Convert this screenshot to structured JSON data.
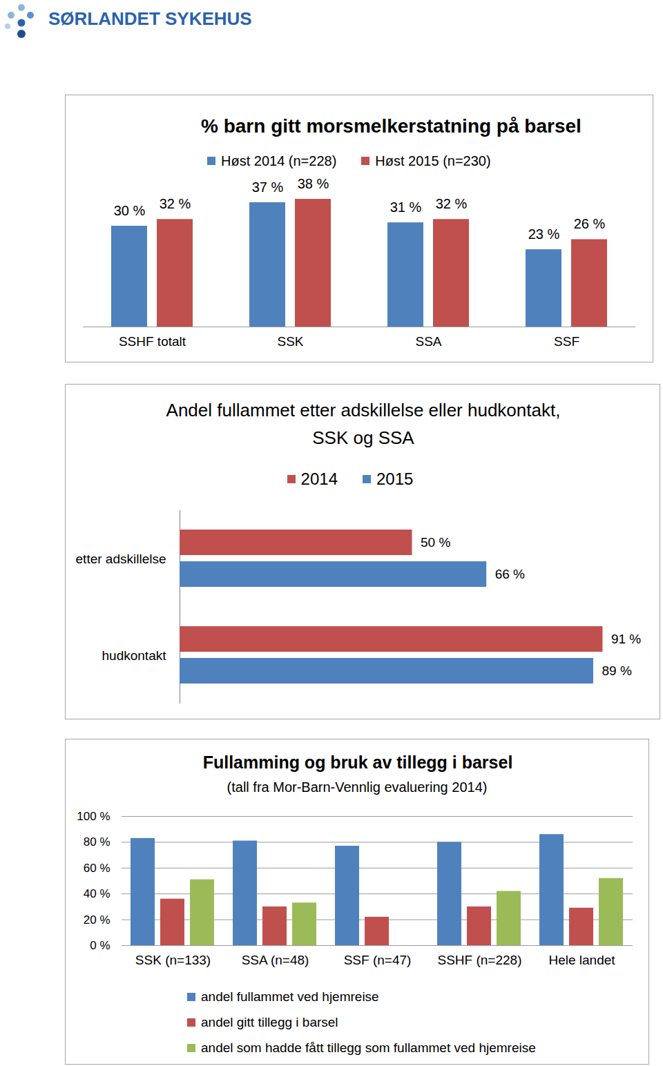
{
  "header": {
    "logo": "SØRLANDET SYKEHUS"
  },
  "chart_data": [
    {
      "type": "bar",
      "title": "% barn gitt morsmelkerstatning på barsel",
      "categories": [
        "SSHF totalt",
        "SSK",
        "SSA",
        "SSF"
      ],
      "series": [
        {
          "name": "Høst 2014 (n=228)",
          "color": "#4f81bd",
          "values": [
            30,
            37,
            31,
            23
          ],
          "value_labels": [
            "30 %",
            "37 %",
            "31 %",
            "23 %"
          ]
        },
        {
          "name": "Høst 2015 (n=230)",
          "color": "#c0504d",
          "values": [
            32,
            38,
            32,
            26
          ],
          "value_labels": [
            "32 %",
            "38 %",
            "32 %",
            "26 %"
          ]
        }
      ],
      "ylim": [
        0,
        45
      ],
      "data_labels": true,
      "tick_labels": "x",
      "legend": "top"
    },
    {
      "type": "bar",
      "title": "Andel fullammet etter adskillelse eller hudkontakt,\nSSK og SSA",
      "orientation": "horizontal",
      "categories": [
        "etter adskillelse",
        "hudkontakt"
      ],
      "series": [
        {
          "name": "2014",
          "color": "#c0504d",
          "values": [
            50,
            91
          ],
          "value_labels": [
            "50 %",
            "91 %"
          ]
        },
        {
          "name": "2015",
          "color": "#4f81bd",
          "values": [
            66,
            89
          ],
          "value_labels": [
            "66 %",
            "89 %"
          ]
        }
      ],
      "xlim": [
        0,
        100
      ],
      "data_labels": true,
      "tick_labels": "y",
      "legend": "top"
    },
    {
      "type": "bar",
      "title": "Fullamming og bruk av tillegg i barsel",
      "subtitle": "(tall fra Mor-Barn-Vennlig evaluering 2014)",
      "categories": [
        "SSK (n=133)",
        "SSA (n=48)",
        "SSF (n=47)",
        "SSHF (n=228)",
        "Hele landet"
      ],
      "series": [
        {
          "name": "andel fullammet ved hjemreise",
          "color": "#4f81bd",
          "values": [
            83,
            81,
            77,
            80,
            86
          ]
        },
        {
          "name": "andel gitt tillegg i barsel",
          "color": "#c0504d",
          "values": [
            36,
            30,
            22,
            30,
            29
          ]
        },
        {
          "name": "andel som hadde fått tillegg som fullammet ved hjemreise",
          "color": "#9bbb59",
          "values": [
            51,
            33,
            null,
            42,
            52
          ]
        }
      ],
      "ylim": [
        0,
        100
      ],
      "yticks": [
        {
          "value": 0,
          "label": "0 %"
        },
        {
          "value": 20,
          "label": "20 %"
        },
        {
          "value": 40,
          "label": "40 %"
        },
        {
          "value": 60,
          "label": "60 %"
        },
        {
          "value": 80,
          "label": "80 %"
        },
        {
          "value": 100,
          "label": "100 %"
        }
      ],
      "grid": true,
      "legend": "bottom"
    }
  ]
}
